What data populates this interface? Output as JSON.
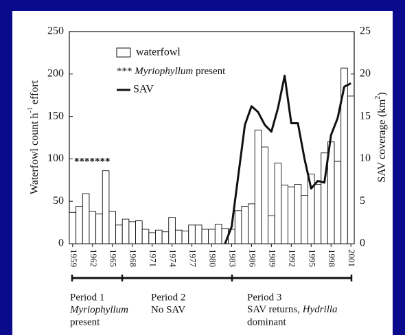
{
  "chart_data": {
    "type": "bar",
    "y_label_parts": [
      "Waterfowl count h",
      "-1",
      " effort"
    ],
    "y2_label_parts": [
      "SAV coverage (km",
      "2",
      ")"
    ],
    "x": [
      1959,
      1960,
      1961,
      1962,
      1963,
      1964,
      1965,
      1966,
      1967,
      1968,
      1969,
      1970,
      1971,
      1972,
      1973,
      1974,
      1975,
      1976,
      1977,
      1978,
      1979,
      1980,
      1981,
      1982,
      1983,
      1984,
      1985,
      1986,
      1987,
      1988,
      1989,
      1990,
      1991,
      1992,
      1993,
      1994,
      1995,
      1996,
      1997,
      1998,
      1999,
      2000,
      2001
    ],
    "xlim": [
      1958.5,
      2001.5
    ],
    "xticks": [
      1959,
      1962,
      1965,
      1968,
      1971,
      1974,
      1977,
      1980,
      1983,
      1986,
      1989,
      1992,
      1995,
      1998,
      2001
    ],
    "ylim": [
      0,
      250
    ],
    "yticks": [
      0,
      50,
      100,
      150,
      200,
      250
    ],
    "y2lim": [
      0,
      25
    ],
    "y2ticks": [
      0,
      5,
      10,
      15,
      20,
      25
    ],
    "series": [
      {
        "name": "waterfowl",
        "type": "bar",
        "color": "#ffffff",
        "values": [
          37,
          44,
          59,
          38,
          35,
          86,
          38,
          22,
          29,
          26,
          27,
          17,
          13,
          16,
          14,
          31,
          16,
          15,
          22,
          22,
          17,
          17,
          23,
          18,
          17,
          39,
          44,
          47,
          134,
          114,
          33,
          95,
          69,
          67,
          70,
          57,
          82,
          70,
          107,
          120,
          97,
          207,
          174
        ]
      },
      {
        "name": "SAV",
        "type": "line",
        "axis": "y2",
        "color": "#111111",
        "values": [
          null,
          null,
          null,
          null,
          null,
          null,
          null,
          null,
          null,
          null,
          null,
          null,
          null,
          null,
          null,
          null,
          null,
          null,
          null,
          null,
          null,
          null,
          null,
          0,
          2,
          8,
          14,
          16.2,
          15.5,
          14,
          13.2,
          16,
          19.8,
          14.2,
          14.2,
          10,
          6.5,
          7.4,
          7.2,
          12.8,
          14.8,
          18.5,
          18.9
        ]
      }
    ],
    "legend_note_parts": [
      "***",
      "Myriophyllum",
      "present"
    ],
    "annotation": "*******",
    "periods": [
      {
        "lines": [
          "Period 1",
          "Myriophyllum",
          "present"
        ]
      },
      {
        "lines": [
          "Period 2",
          "No SAV"
        ]
      },
      {
        "lines": [
          "Period 3",
          "SAV returns, ",
          "Hydrilla",
          "dominant"
        ]
      }
    ]
  }
}
